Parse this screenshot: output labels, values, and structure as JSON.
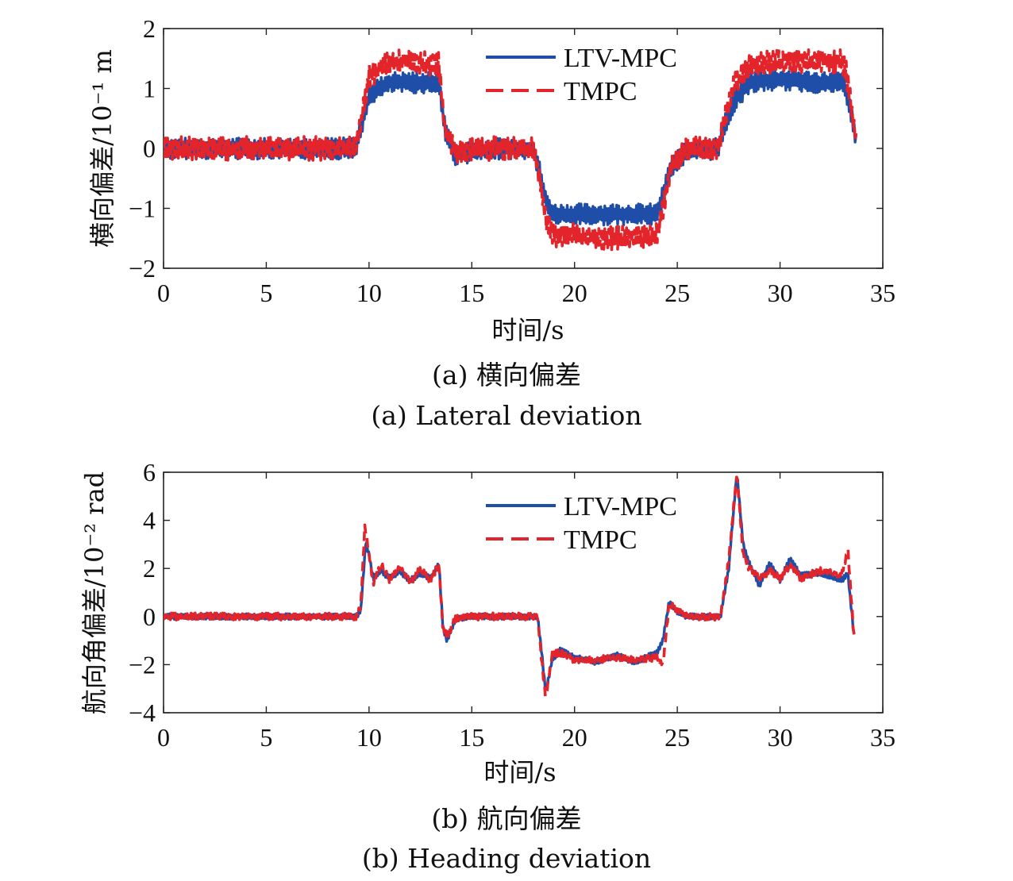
{
  "chart_data": [
    {
      "type": "line",
      "xlabel": "时间/s",
      "ylabel": "横向偏差/10⁻¹ m",
      "xlim": [
        0,
        35
      ],
      "ylim": [
        -2,
        2
      ],
      "xticks": [
        "0",
        "5",
        "10",
        "15",
        "20",
        "25",
        "30",
        "35"
      ],
      "yticks": [
        "−2",
        "−1",
        "0",
        "1",
        "2"
      ],
      "legend_position": "top-right",
      "caption_cn": "(a) 横向偏差",
      "caption_en": "(a) Lateral deviation",
      "series": [
        {
          "name": "LTV-MPC",
          "color": "#1f4ea8",
          "style": "solid",
          "x": [
            0,
            9.3,
            9.6,
            10,
            11,
            12,
            13,
            13.4,
            13.7,
            14.2,
            16,
            18,
            18.3,
            18.6,
            19,
            20,
            22,
            24,
            24.3,
            24.7,
            25.5,
            27,
            27.3,
            27.8,
            28.5,
            30,
            32,
            33,
            33.2,
            33.5,
            33.7
          ],
          "values": [
            0,
            0,
            0.3,
            0.9,
            1.1,
            1.1,
            1.1,
            1.1,
            0.3,
            -0.1,
            0,
            0,
            -0.4,
            -0.9,
            -1.1,
            -1.1,
            -1.1,
            -1.1,
            -0.8,
            -0.3,
            -0.05,
            0,
            0.4,
            0.8,
            1.1,
            1.15,
            1.1,
            1.1,
            1.0,
            0.5,
            0.1
          ],
          "noise": 0.18
        },
        {
          "name": "TMPC",
          "color": "#e4242b",
          "style": "dashed",
          "x": [
            0,
            9.3,
            9.6,
            10,
            11,
            12,
            13,
            13.4,
            13.7,
            14.2,
            16,
            18,
            18.3,
            18.6,
            19,
            20,
            22,
            24,
            24.3,
            24.7,
            25.5,
            27,
            27.3,
            27.8,
            28.5,
            30,
            32,
            33,
            33.2,
            33.5,
            33.7
          ],
          "values": [
            0,
            0,
            0.4,
            1.2,
            1.45,
            1.45,
            1.4,
            1.4,
            0.3,
            -0.05,
            0,
            0,
            -0.5,
            -1.2,
            -1.45,
            -1.45,
            -1.5,
            -1.45,
            -1.0,
            -0.3,
            0,
            0,
            0.5,
            1.1,
            1.4,
            1.45,
            1.45,
            1.45,
            1.3,
            0.6,
            0.1
          ],
          "noise": 0.2
        }
      ]
    },
    {
      "type": "line",
      "xlabel": "时间/s",
      "ylabel": "航向角偏差/10⁻² rad",
      "xlim": [
        0,
        35
      ],
      "ylim": [
        -4,
        6
      ],
      "xticks": [
        "0",
        "5",
        "10",
        "15",
        "20",
        "25",
        "30",
        "35"
      ],
      "yticks": [
        "−4",
        "−2",
        "0",
        "2",
        "4",
        "6"
      ],
      "legend_position": "top-right",
      "caption_cn": "(b) 航向偏差",
      "caption_en": "(b) Heading deviation",
      "series": [
        {
          "name": "LTV-MPC",
          "color": "#1f4ea8",
          "style": "solid",
          "x": [
            0,
            9.4,
            9.6,
            9.85,
            10.2,
            10.6,
            11,
            11.5,
            12,
            12.5,
            13,
            13.4,
            13.6,
            13.8,
            14.2,
            15,
            18.2,
            18.4,
            18.6,
            18.9,
            19.3,
            20,
            21,
            22,
            23,
            24,
            24.3,
            24.6,
            25,
            25.5,
            27.1,
            27.5,
            27.9,
            28.2,
            28.5,
            29,
            29.5,
            30,
            30.5,
            31,
            32,
            33,
            33.3,
            33.6
          ],
          "values": [
            0,
            0,
            0.3,
            3.2,
            1.6,
            1.9,
            1.6,
            1.9,
            1.5,
            1.8,
            1.6,
            2.2,
            -0.5,
            -1.0,
            -0.1,
            0,
            0,
            -1.5,
            -3.2,
            -1.8,
            -1.4,
            -1.7,
            -1.9,
            -1.6,
            -1.9,
            -1.5,
            -1.0,
            0.6,
            0.2,
            0,
            0,
            2.0,
            6.0,
            3.0,
            2.2,
            1.3,
            2.2,
            1.5,
            2.4,
            1.7,
            1.8,
            1.5,
            1.8,
            -0.8
          ],
          "noise": 0.12
        },
        {
          "name": "TMPC",
          "color": "#e4242b",
          "style": "dashed",
          "x": [
            0,
            9.4,
            9.6,
            9.8,
            10.2,
            10.6,
            11,
            11.5,
            12,
            12.5,
            13,
            13.4,
            13.6,
            13.8,
            14.2,
            15,
            18.2,
            18.4,
            18.6,
            18.9,
            19.3,
            20,
            21,
            22,
            23,
            24,
            24.3,
            24.6,
            25,
            25.5,
            27.1,
            27.5,
            27.9,
            28.2,
            28.5,
            29,
            29.5,
            30,
            30.5,
            31,
            32,
            33,
            33.3,
            33.6
          ],
          "values": [
            0,
            0,
            0.5,
            3.8,
            1.4,
            2.2,
            1.5,
            2.1,
            1.4,
            2.0,
            1.5,
            2.2,
            -0.6,
            -0.8,
            -0.1,
            0,
            0,
            -1.8,
            -3.4,
            -1.6,
            -1.5,
            -1.8,
            -1.8,
            -1.7,
            -1.8,
            -1.7,
            -2.0,
            0.5,
            0.3,
            0,
            0,
            2.3,
            6.0,
            2.6,
            2.0,
            1.6,
            1.9,
            1.6,
            2.1,
            1.6,
            1.9,
            1.7,
            2.8,
            -0.9
          ],
          "noise": 0.15
        }
      ]
    }
  ]
}
